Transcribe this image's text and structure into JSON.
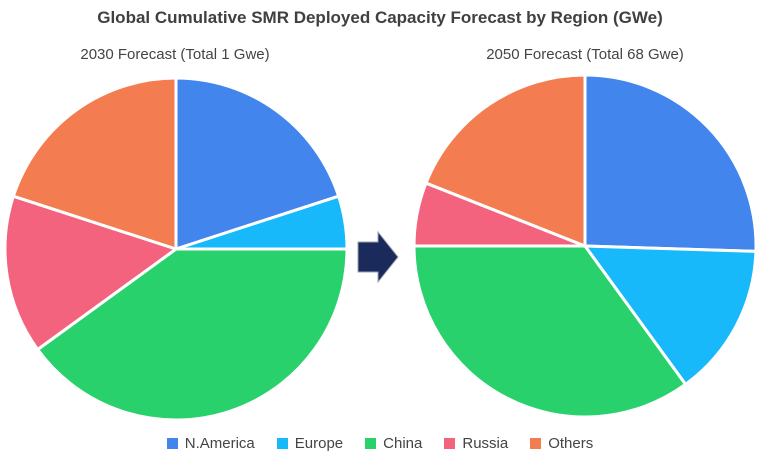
{
  "chart_data": {
    "type": "pie",
    "title": "Global Cumulative SMR Deployed Capacity Forecast by Region (GWe)",
    "categories": [
      "N.America",
      "Europe",
      "China",
      "Russia",
      "Others"
    ],
    "colors": {
      "N.America": "#4285ec",
      "Europe": "#18b9fb",
      "China": "#28d16b",
      "Russia": "#f4637d",
      "Others": "#f47c51"
    },
    "charts": [
      {
        "subtitle": "2030 Forecast (Total 1 Gwe)",
        "values": [
          20,
          5,
          40,
          15,
          20
        ]
      },
      {
        "subtitle": "2050 Forecast (Total 68 Gwe)",
        "values": [
          25.5,
          14.5,
          35,
          6,
          19
        ]
      }
    ],
    "legend_position": "bottom"
  }
}
